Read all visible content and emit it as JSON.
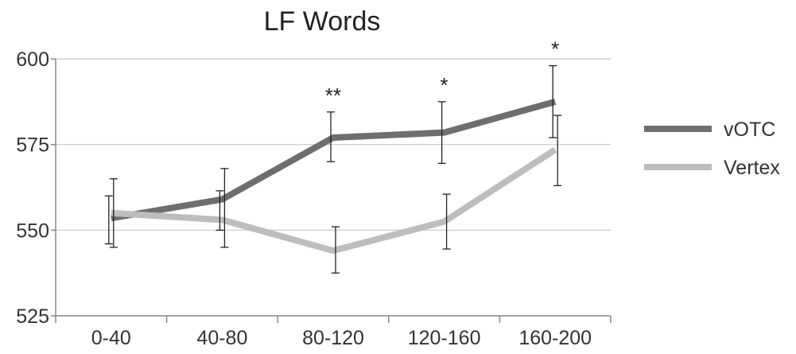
{
  "chart_data": {
    "type": "line",
    "title": "LF Words",
    "xlabel": "",
    "ylabel": "",
    "categories": [
      "0-40",
      "40-80",
      "80-120",
      "120-160",
      "160-200"
    ],
    "ylim": [
      525,
      600
    ],
    "yticks": [
      525,
      550,
      575,
      600
    ],
    "grid": true,
    "legend_position": "right",
    "series": [
      {
        "name": "vOTC",
        "color": "#6e6e6e",
        "values": [
          553.5,
          559,
          577,
          578.5,
          587.5
        ],
        "error_low": [
          546,
          550,
          570,
          569.5,
          577
        ],
        "error_high": [
          560,
          561.5,
          584.5,
          587.5,
          598
        ]
      },
      {
        "name": "Vertex",
        "color": "#bdbdbd",
        "values": [
          555,
          553,
          544,
          552.5,
          573.5
        ],
        "error_low": [
          545,
          545,
          537.5,
          544.5,
          563
        ],
        "error_high": [
          565,
          568,
          551,
          560.5,
          583.5
        ]
      }
    ],
    "annotations": [
      {
        "category": "80-120",
        "text": "**"
      },
      {
        "category": "120-160",
        "text": "*"
      },
      {
        "category": "160-200",
        "text": "*"
      }
    ]
  }
}
